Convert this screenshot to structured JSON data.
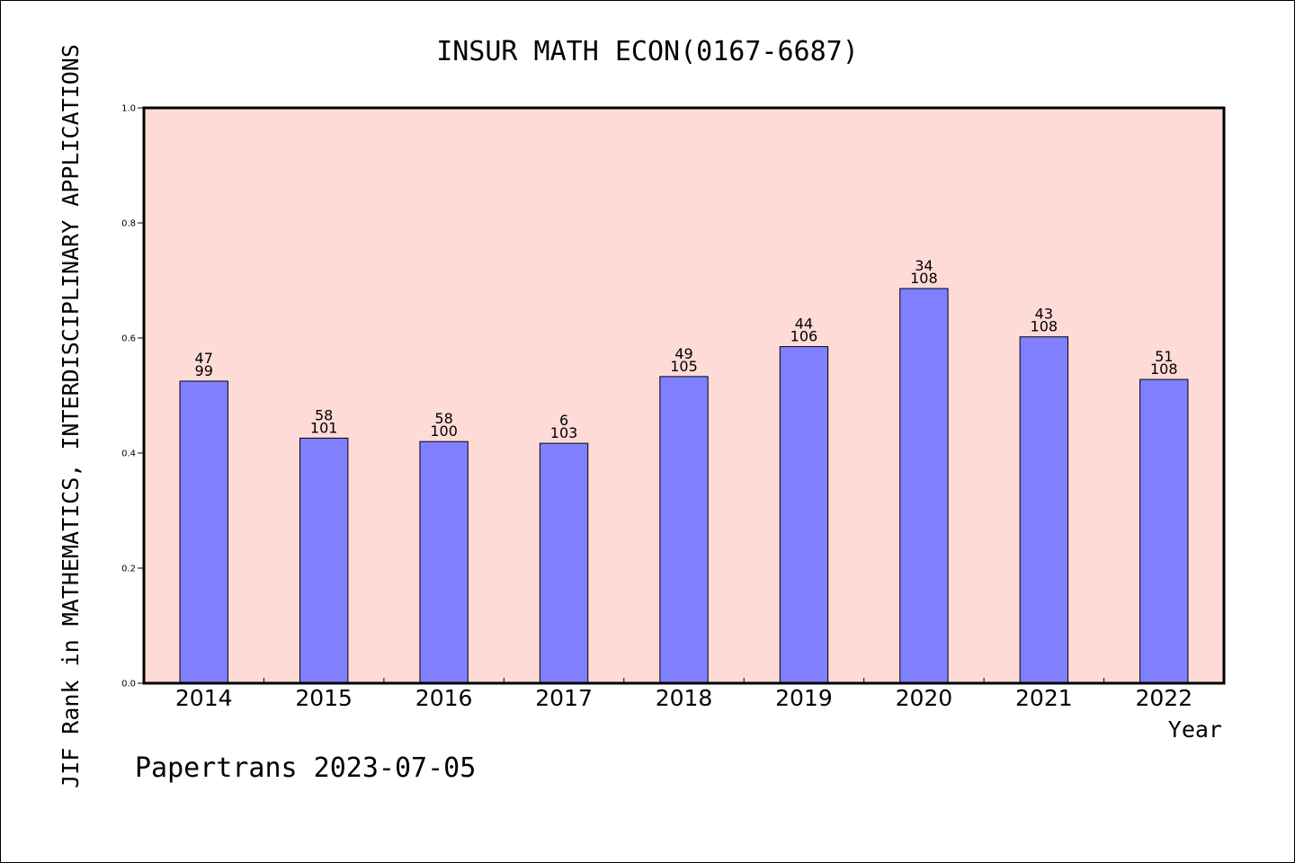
{
  "chart_data": {
    "type": "bar",
    "title": "INSUR MATH ECON(0167-6687)",
    "ylabel": "JIF Rank in MATHEMATICS, INTERDISCIPLINARY APPLICATIONS",
    "xlabel": "Year",
    "categories": [
      "2014",
      "2015",
      "2016",
      "2017",
      "2018",
      "2019",
      "2020",
      "2021",
      "2022"
    ],
    "values": [
      0.525,
      0.426,
      0.42,
      0.417,
      0.533,
      0.585,
      0.686,
      0.602,
      0.528
    ],
    "rank": [
      "47",
      "58",
      "58",
      "6",
      "49",
      "44",
      "34",
      "43",
      "51"
    ],
    "total": [
      "99",
      "101",
      "100",
      "103",
      "105",
      "106",
      "108",
      "108",
      "108"
    ],
    "ylim": [
      0,
      1.0
    ],
    "yticks": [
      "0.0",
      "0.2",
      "0.4",
      "0.6",
      "0.8",
      "1.0"
    ],
    "grid": false,
    "colors": {
      "plot_background": "#ffdbd8",
      "bar_fill": "#8080ff",
      "bar_stroke": "#000000"
    }
  },
  "footer": "Papertrans 2023-07-05"
}
